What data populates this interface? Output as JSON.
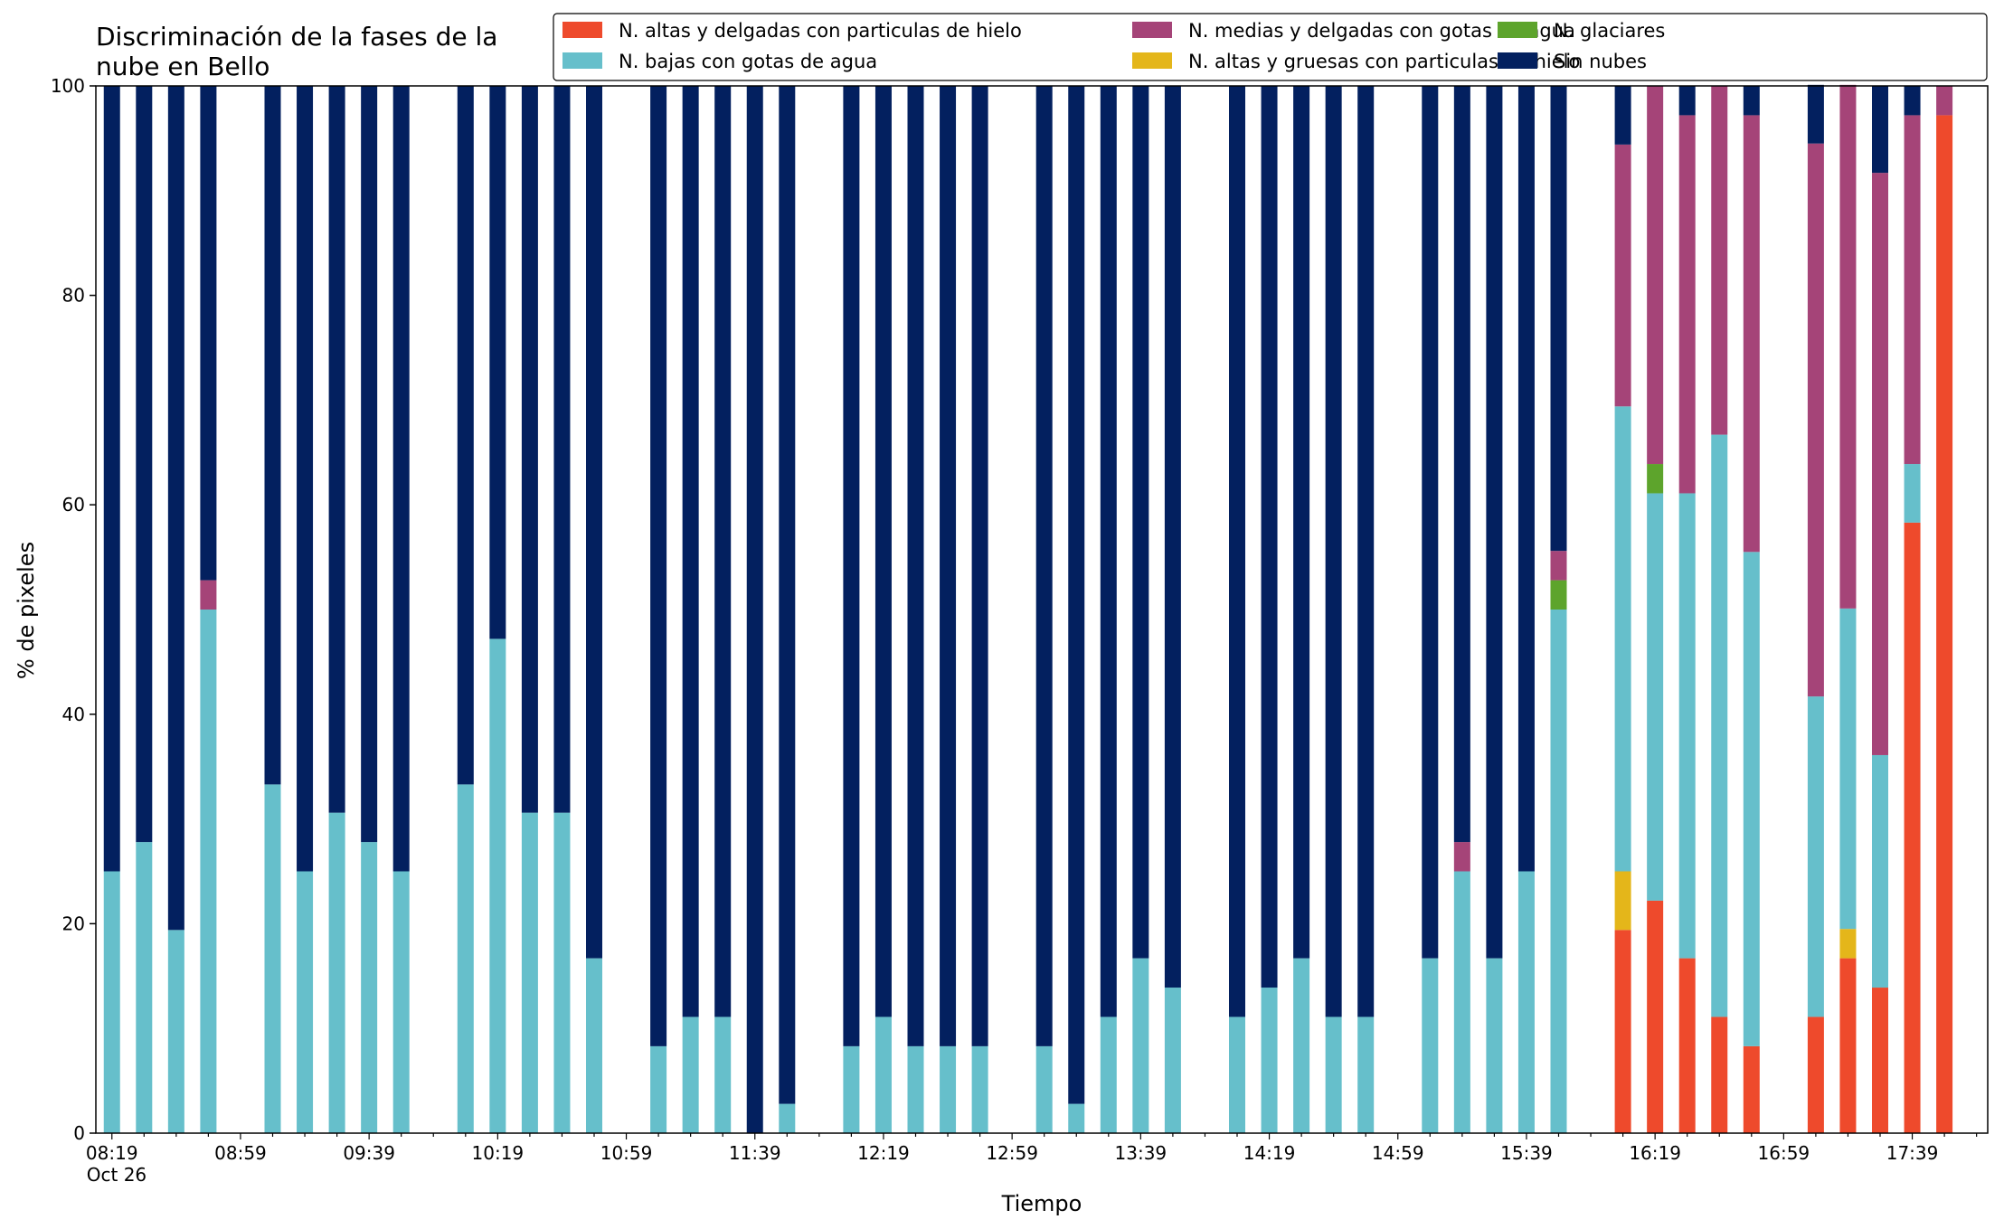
{
  "chart_data": {
    "type": "bar",
    "stacked": true,
    "title": "Discriminación de la fases de la nube en Bello",
    "title_lines": [
      "Discriminación de la fases de la",
      "nube en Bello"
    ],
    "xlabel": "Tiempo",
    "ylabel": "% de pixeles",
    "ylim": [
      0,
      100
    ],
    "yticks": [
      "0",
      "20",
      "40",
      "60",
      "80",
      "100"
    ],
    "x_start": "08:19",
    "x_step_minutes": 10,
    "x_tick_labels": [
      "08:19",
      "08:59",
      "09:39",
      "10:19",
      "10:59",
      "11:39",
      "12:19",
      "12:59",
      "13:39",
      "14:19",
      "14:59",
      "15:39",
      "16:19",
      "16:59",
      "17:39"
    ],
    "x_date_label": "Oct 26",
    "legend_position": "upper-right",
    "legend_order": [
      0,
      2,
      4,
      1,
      3,
      5
    ],
    "times": [
      "08:19",
      "08:29",
      "08:39",
      "08:49",
      "08:59",
      "09:09",
      "09:19",
      "09:29",
      "09:39",
      "09:49",
      "09:59",
      "10:09",
      "10:19",
      "10:29",
      "10:39",
      "10:49",
      "10:59",
      "11:09",
      "11:19",
      "11:29",
      "11:39",
      "11:49",
      "11:59",
      "12:09",
      "12:19",
      "12:29",
      "12:39",
      "12:49",
      "12:59",
      "13:09",
      "13:19",
      "13:29",
      "13:39",
      "13:49",
      "13:59",
      "14:09",
      "14:19",
      "14:29",
      "14:39",
      "14:49",
      "14:59",
      "15:09",
      "15:19",
      "15:29",
      "15:39",
      "15:49",
      "15:59",
      "16:09",
      "16:19",
      "16:29",
      "16:39",
      "16:49",
      "16:59",
      "17:09",
      "17:19",
      "17:29",
      "17:39",
      "17:49",
      "17:59"
    ],
    "series": [
      {
        "name": "N. altas y delgadas con particulas de hielo",
        "color": "#ee4a2c",
        "values": [
          0,
          0,
          0,
          0,
          null,
          0,
          0,
          0,
          0,
          0,
          null,
          0,
          0,
          0,
          0,
          0,
          null,
          0,
          0,
          0,
          0,
          0,
          null,
          0,
          0,
          0,
          0,
          0,
          null,
          0,
          0,
          0,
          0,
          0,
          null,
          0,
          0,
          0,
          0,
          0,
          null,
          0,
          0,
          0,
          0,
          0,
          null,
          19.4,
          22.2,
          16.7,
          11.1,
          8.3,
          null,
          11.1,
          16.7,
          13.9,
          58.3,
          97.2,
          null
        ]
      },
      {
        "name": "N. altas y gruesas con particulas de hielo",
        "color": "#e4b61a",
        "values": [
          0,
          0,
          0,
          0,
          null,
          0,
          0,
          0,
          0,
          0,
          null,
          0,
          0,
          0,
          0,
          0,
          null,
          0,
          0,
          0,
          0,
          0,
          null,
          0,
          0,
          0,
          0,
          0,
          null,
          0,
          0,
          0,
          0,
          0,
          null,
          0,
          0,
          0,
          0,
          0,
          null,
          0,
          0,
          0,
          0,
          0,
          null,
          5.6,
          0,
          0,
          0,
          0,
          null,
          0,
          2.8,
          0,
          0,
          0,
          null
        ]
      },
      {
        "name": "N. bajas con gotas de agua",
        "color": "#66bfcb",
        "values": [
          25,
          27.8,
          19.4,
          50,
          null,
          33.3,
          25,
          30.6,
          27.8,
          25,
          null,
          33.3,
          47.2,
          30.6,
          30.6,
          16.7,
          null,
          8.3,
          11.1,
          11.1,
          0,
          2.8,
          null,
          8.3,
          11.1,
          8.3,
          8.3,
          8.3,
          null,
          8.3,
          2.8,
          11.1,
          16.7,
          13.9,
          null,
          11.1,
          13.9,
          16.7,
          11.1,
          11.1,
          null,
          16.7,
          25,
          16.7,
          25,
          50,
          null,
          44.4,
          38.9,
          44.4,
          55.6,
          47.2,
          null,
          30.6,
          30.6,
          22.2,
          5.6,
          0,
          null
        ]
      },
      {
        "name": "N. glaciares",
        "color": "#5da42c",
        "values": [
          0,
          0,
          0,
          0,
          null,
          0,
          0,
          0,
          0,
          0,
          null,
          0,
          0,
          0,
          0,
          0,
          null,
          0,
          0,
          0,
          0,
          0,
          null,
          0,
          0,
          0,
          0,
          0,
          null,
          0,
          0,
          0,
          0,
          0,
          null,
          0,
          0,
          0,
          0,
          0,
          null,
          0,
          0,
          0,
          0,
          2.8,
          null,
          0,
          2.8,
          0,
          0,
          0,
          null,
          0,
          0,
          0,
          0,
          0,
          null
        ]
      },
      {
        "name": "N. medias y delgadas con gotas de agua",
        "color": "#a54478",
        "values": [
          0,
          0,
          0,
          2.8,
          null,
          0,
          0,
          0,
          0,
          0,
          null,
          0,
          0,
          0,
          0,
          0,
          null,
          0,
          0,
          0,
          0,
          0,
          null,
          0,
          0,
          0,
          0,
          0,
          null,
          0,
          0,
          0,
          0,
          0,
          null,
          0,
          0,
          0,
          0,
          0,
          null,
          0,
          2.8,
          0,
          0,
          2.8,
          null,
          25,
          36.1,
          36.1,
          33.3,
          41.7,
          null,
          52.8,
          50,
          55.6,
          33.3,
          2.8,
          null
        ]
      },
      {
        "name": "Sin nubes",
        "color": "#03205f",
        "values": [
          75,
          72.2,
          80.6,
          47.2,
          null,
          66.7,
          75,
          69.4,
          72.2,
          75,
          null,
          66.7,
          52.8,
          69.4,
          69.4,
          83.3,
          null,
          91.7,
          88.9,
          88.9,
          100,
          97.2,
          null,
          91.7,
          88.9,
          91.7,
          91.7,
          91.7,
          null,
          91.7,
          97.2,
          88.9,
          83.3,
          86.1,
          null,
          88.9,
          86.1,
          83.3,
          88.9,
          88.9,
          null,
          83.3,
          72.2,
          83.3,
          75,
          44.4,
          null,
          5.6,
          0,
          2.8,
          0,
          2.8,
          null,
          5.6,
          0,
          8.3,
          2.8,
          0,
          null
        ]
      }
    ]
  }
}
